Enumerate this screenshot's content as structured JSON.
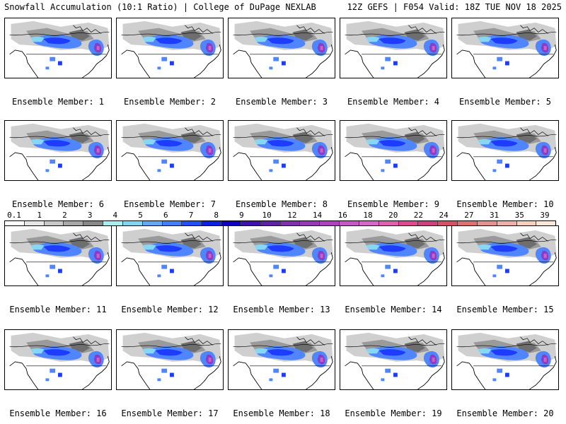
{
  "header": {
    "title_left": "Snowfall Accumulation (10:1 Ratio) | College of DuPage NEXLAB",
    "title_right": "12Z GEFS | F054 Valid: 18Z TUE NOV 18 2025"
  },
  "panels": [
    {
      "label": "Ensemble Member: 1"
    },
    {
      "label": "Ensemble Member: 2"
    },
    {
      "label": "Ensemble Member: 3"
    },
    {
      "label": "Ensemble Member: 4"
    },
    {
      "label": "Ensemble Member: 5"
    },
    {
      "label": "Ensemble Member: 6"
    },
    {
      "label": "Ensemble Member: 7"
    },
    {
      "label": "Ensemble Member: 8"
    },
    {
      "label": "Ensemble Member: 9"
    },
    {
      "label": "Ensemble Member: 10"
    },
    {
      "label": "Ensemble Member: 11"
    },
    {
      "label": "Ensemble Member: 12"
    },
    {
      "label": "Ensemble Member: 13"
    },
    {
      "label": "Ensemble Member: 14"
    },
    {
      "label": "Ensemble Member: 15"
    },
    {
      "label": "Ensemble Member: 16"
    },
    {
      "label": "Ensemble Member: 17"
    },
    {
      "label": "Ensemble Member: 18"
    },
    {
      "label": "Ensemble Member: 19"
    },
    {
      "label": "Ensemble Member: 20"
    }
  ],
  "colorbar": {
    "ticks": [
      "0.1",
      "1",
      "2",
      "3",
      "4",
      "5",
      "6",
      "7",
      "8",
      "9",
      "10",
      "12",
      "14",
      "16",
      "18",
      "20",
      "22",
      "24",
      "27",
      "31",
      "35",
      "39"
    ],
    "colors": [
      "#ffffff",
      "#e6e6e6",
      "#c8c8c8",
      "#a8a8a8",
      "#888888",
      "#a8f0f0",
      "#7fd8f0",
      "#60a8f8",
      "#4080ff",
      "#2050ff",
      "#1020e0",
      "#1000c0",
      "#4010b0",
      "#6020a8",
      "#8030b0",
      "#9838b8",
      "#b040c0",
      "#c858c8",
      "#d868c8",
      "#e060b0",
      "#e04890",
      "#d04080",
      "#d85068",
      "#e07070",
      "#e89090",
      "#f0b0a8",
      "#f8d0c0",
      "#fce8d8"
    ]
  }
}
